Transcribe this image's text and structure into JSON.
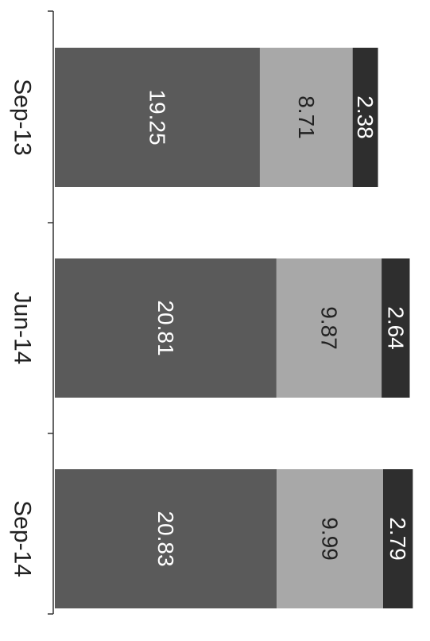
{
  "chart_data": {
    "type": "bar",
    "stacked": true,
    "orientation": "horizontal",
    "rotated": "90deg-clockwise",
    "categories": [
      "Sep-13",
      "Jun-14",
      "Sep-14"
    ],
    "series": [
      {
        "values": [
          19.25,
          20.81,
          20.83
        ],
        "color": "#5a5a5a",
        "label_color": "#ffffff"
      },
      {
        "values": [
          8.71,
          9.87,
          9.99
        ],
        "color": "#a8a8a8",
        "label_color": "#222222"
      },
      {
        "values": [
          2.38,
          2.64,
          2.79
        ],
        "color": "#2e2e2e",
        "label_color": "#ffffff"
      }
    ],
    "legend": "none",
    "grid": false
  }
}
